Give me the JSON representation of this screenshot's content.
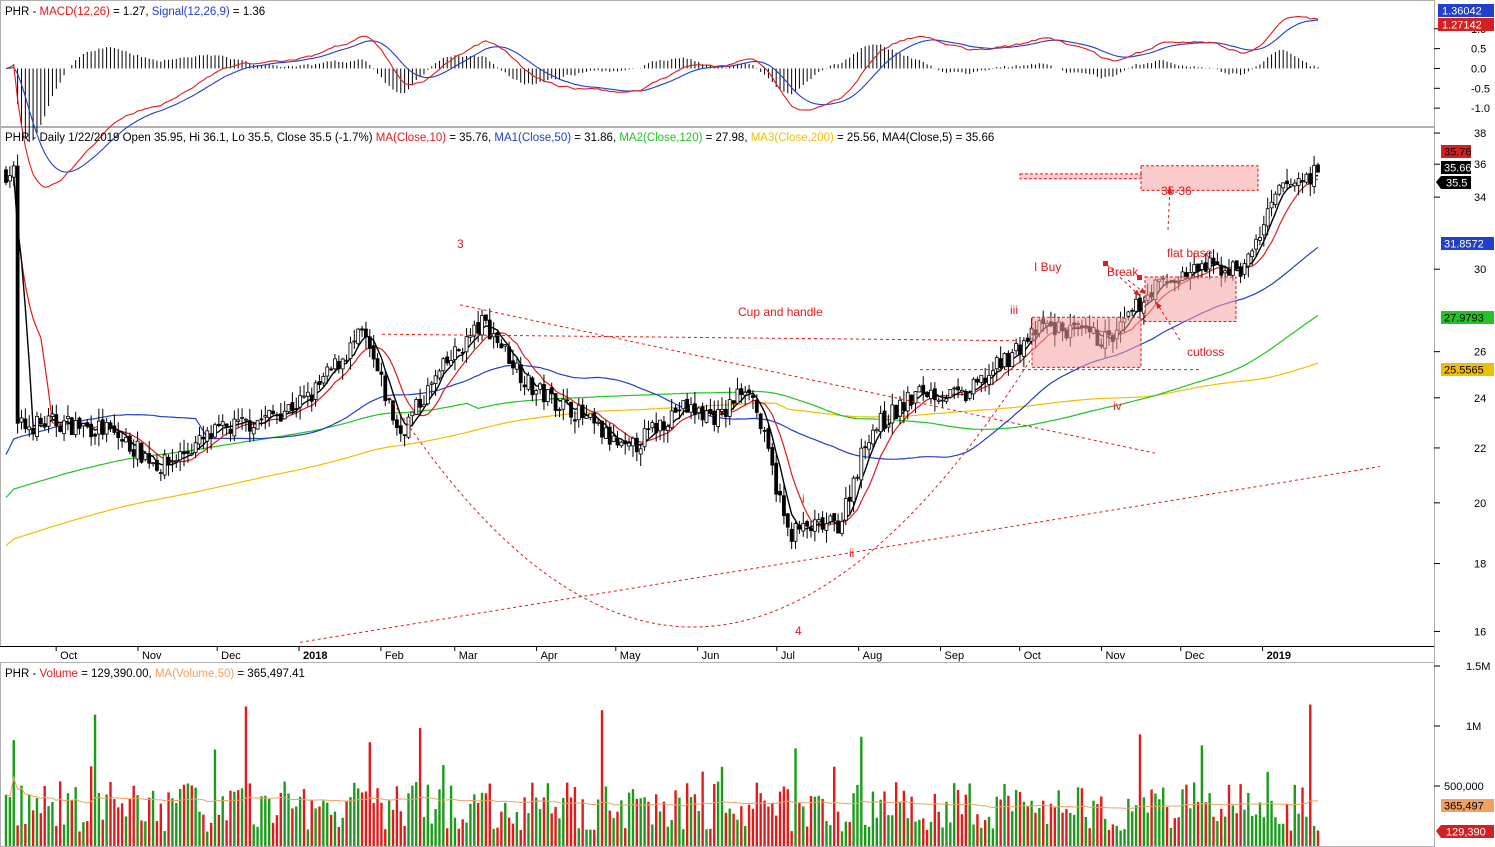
{
  "headers": {
    "macd": {
      "symbol": "PHR",
      "sep": " - ",
      "macd_label": "MACD(12,26)",
      "macd_value": " = 1.27, ",
      "signal_label": "Signal(12,26,9)",
      "signal_value": " = 1.36"
    },
    "price": {
      "prefix": "PHR - Daily 1/22/2019 Open 35.95, Hi 36.1, Lo 35.5, Close 35.5 (-1.7%) ",
      "ma": "MA(Close,10)",
      "ma_value": " = 35.76, ",
      "ma1": "MA1(Close,50)",
      "ma1_value": " = 31.86, ",
      "ma2": "MA2(Close,120)",
      "ma2_value": " = 27.98, ",
      "ma3": "MA3(Close,200)",
      "ma3_value": " = 25.56, ",
      "ma4": "MA4(Close,5)",
      "ma4_value": " = 35.66"
    },
    "volume": {
      "symbol": "PHR",
      "sep": " - ",
      "vol_label": "Volume",
      "vol_value": " = 129,390.00, ",
      "ma_label": "MA(Volume,50)",
      "ma_value": " = 365,497.41"
    }
  },
  "axes": {
    "macd_ticks": [
      "1.0",
      "0.5",
      "0.0",
      "-0.5",
      "-1.0"
    ],
    "price_ticks": [
      "38",
      "36",
      "34",
      "30",
      "26",
      "24",
      "22",
      "20",
      "18",
      "16"
    ],
    "volume_ticks": [
      "1.5M",
      "1M",
      "500,000"
    ],
    "months": [
      "Oct",
      "Nov",
      "Dec",
      "2018",
      "Feb",
      "Mar",
      "Apr",
      "May",
      "Jun",
      "Jul",
      "Aug",
      "Sep",
      "Oct",
      "Nov",
      "Dec",
      "2019"
    ]
  },
  "value_tags": {
    "macd": [
      "1.36042",
      "1.27142"
    ],
    "price": [
      "35.76",
      "35.66",
      "35.5",
      "31.8572",
      "27.9793",
      "25.5565"
    ],
    "volume": [
      "365,497",
      "129,390"
    ]
  },
  "annotations": {
    "three": "3",
    "four": "4",
    "cup_handle": "Cup and handle",
    "i": "i",
    "ii": "ii",
    "iii": "iii",
    "iv": "iv",
    "i_buy": "I Buy",
    "break": "Break",
    "flat_base": "flat base",
    "target": "35-36",
    "cutloss": "cutloss"
  },
  "colors": {
    "up": "#1a9c1a",
    "down": "#e31a1a",
    "candle": "#000000",
    "ma10": "#e31a1a",
    "ma50": "#1f3fcc",
    "ma120": "#22c422",
    "ma200": "#f0c000",
    "ma5": "#000000",
    "volume_ma": "#f0a060",
    "annotation": "#e31a1a",
    "grid": "#e6e6e6"
  },
  "chart_data": {
    "type": "candlestick",
    "symbol": "PHR",
    "period": "Daily",
    "last_bar": {
      "date": "1/22/2019",
      "open": 35.95,
      "high": 36.1,
      "low": 35.5,
      "close": 35.5,
      "change_pct": -1.7
    },
    "price_scale": "log",
    "price_range": [
      15.6,
      38.2
    ],
    "macd_range": [
      -1.4,
      1.65
    ],
    "volume_range": [
      0,
      1500000
    ],
    "indicators": {
      "ma10": 35.76,
      "ma50": 31.86,
      "ma120": 27.98,
      "ma200": 25.56,
      "ma5": 35.66,
      "macd": 1.27,
      "signal": 1.36,
      "volume": 129390,
      "volume_ma50": 365497.41
    },
    "approx_close_path": [
      [
        "2017-09-15",
        22.8
      ],
      [
        "2017-10-01",
        23.0
      ],
      [
        "2017-10-20",
        22.7
      ],
      [
        "2017-11-10",
        21.3
      ],
      [
        "2017-12-01",
        22.6
      ],
      [
        "2017-12-20",
        23.2
      ],
      [
        "2018-01-05",
        24.0
      ],
      [
        "2018-01-25",
        26.8
      ],
      [
        "2018-02-08",
        22.5
      ],
      [
        "2018-02-25",
        25.3
      ],
      [
        "2018-03-12",
        27.4
      ],
      [
        "2018-03-30",
        24.4
      ],
      [
        "2018-04-15",
        23.5
      ],
      [
        "2018-05-05",
        21.8
      ],
      [
        "2018-05-25",
        23.6
      ],
      [
        "2018-06-10",
        23.2
      ],
      [
        "2018-06-20",
        24.7
      ],
      [
        "2018-07-05",
        19.0
      ],
      [
        "2018-07-25",
        19.3
      ],
      [
        "2018-08-05",
        22.6
      ],
      [
        "2018-08-25",
        24.3
      ],
      [
        "2018-09-10",
        24.0
      ],
      [
        "2018-09-25",
        25.6
      ],
      [
        "2018-10-10",
        27.2
      ],
      [
        "2018-11-05",
        26.5
      ],
      [
        "2018-11-20",
        29.0
      ],
      [
        "2018-12-10",
        30.1
      ],
      [
        "2018-12-25",
        30.0
      ],
      [
        "2019-01-08",
        34.5
      ],
      [
        "2019-01-22",
        35.5
      ]
    ]
  }
}
